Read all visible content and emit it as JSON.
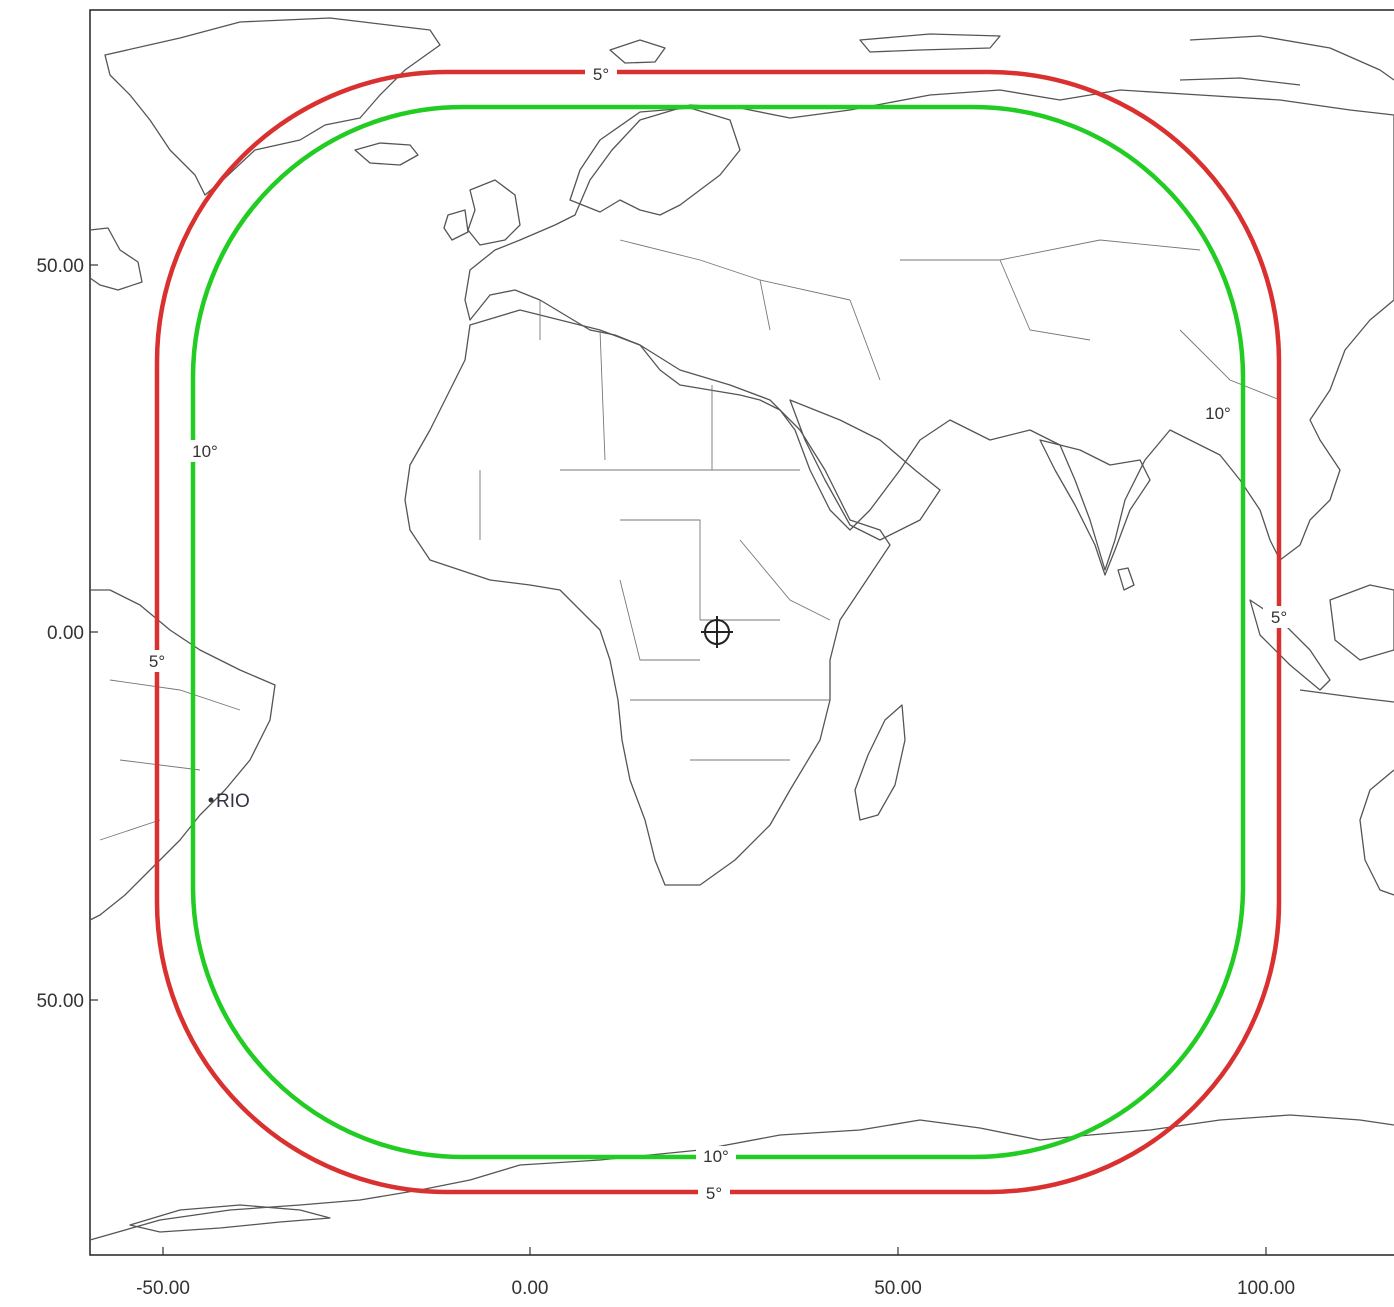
{
  "map": {
    "x_ticks": [
      "-50.00",
      "0.00",
      "50.00",
      "100.00"
    ],
    "y_ticks": [
      "50.00",
      "0.00",
      "50.00"
    ],
    "contours": [
      {
        "elevation": "5°",
        "color": "#d93030"
      },
      {
        "elevation": "10°",
        "color": "#22cc22"
      }
    ],
    "labels": {
      "outer_top": "5°",
      "outer_left": "5°",
      "outer_right": "5°",
      "outer_bottom": "5°",
      "inner_left": "10°",
      "inner_right": "10°",
      "inner_bottom": "10°"
    },
    "city": "RIO",
    "sub_satellite_marker": "crosshair-icon"
  }
}
